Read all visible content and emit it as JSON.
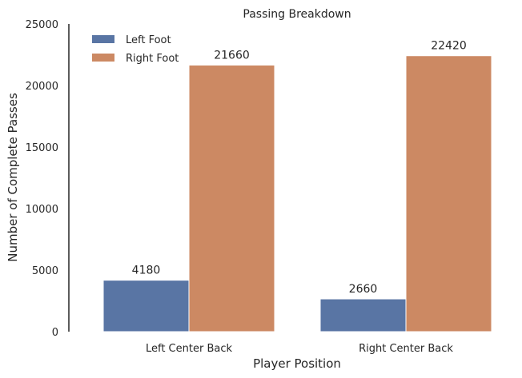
{
  "chart_data": {
    "type": "bar",
    "title": "Passing Breakdown",
    "xlabel": "Player Position",
    "ylabel": "Number of Complete Passes",
    "categories": [
      "Left Center Back",
      "Right Center Back"
    ],
    "series": [
      {
        "name": "Left Foot",
        "values": [
          4180,
          2660
        ],
        "color": "#5975a4"
      },
      {
        "name": "Right Foot",
        "values": [
          21660,
          22420
        ],
        "color": "#cc8963"
      }
    ],
    "ylim": [
      0,
      25000
    ],
    "yticks": [
      0,
      5000,
      10000,
      15000,
      20000,
      25000
    ],
    "data_labels": [
      [
        "4180",
        "2660"
      ],
      [
        "21660",
        "22420"
      ]
    ],
    "grid": false,
    "legend": "top-left"
  }
}
